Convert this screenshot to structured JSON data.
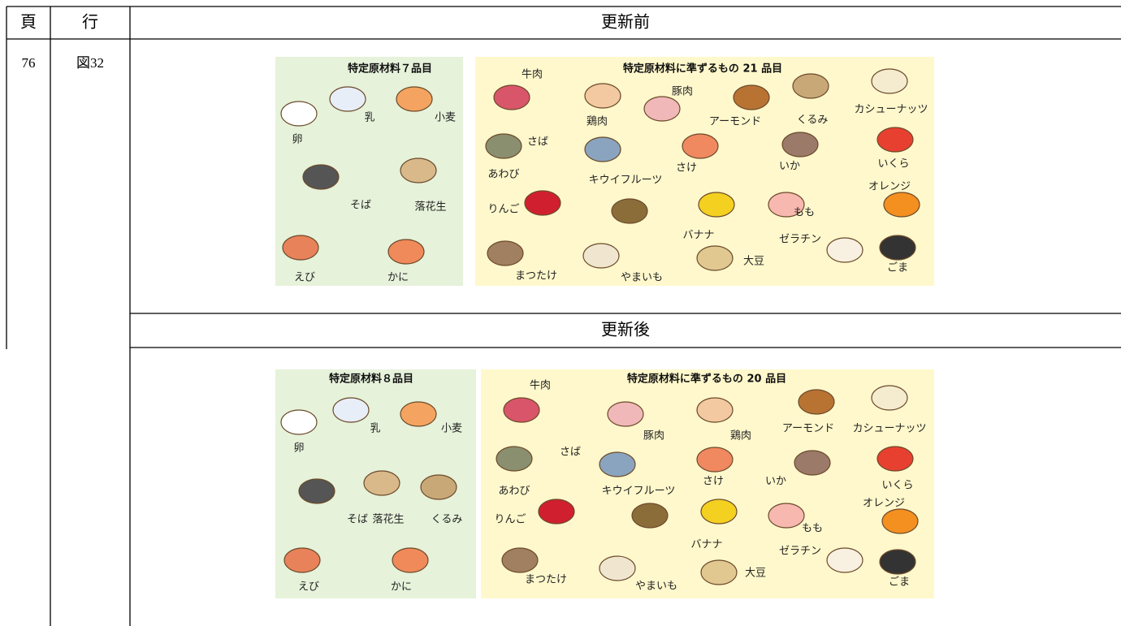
{
  "header": {
    "page": "頁",
    "line": "行",
    "before": "更新前",
    "after": "更新後"
  },
  "row": {
    "page": "76",
    "line": "図32"
  },
  "figure_before": {
    "group1": {
      "title": "特定原材料７品目",
      "items": [
        "卵",
        "乳",
        "小麦",
        "そば",
        "落花生",
        "えび",
        "かに"
      ]
    },
    "group2": {
      "title": "特定原材料に準ずるもの 21 品目",
      "items": [
        "牛肉",
        "鶏肉",
        "豚肉",
        "アーモンド",
        "くるみ",
        "カシューナッツ",
        "さば",
        "キウイフルーツ",
        "さけ",
        "いか",
        "いくら",
        "あわび",
        "りんご",
        "オレンジ",
        "もも",
        "バナナ",
        "ゼラチン",
        "まつたけ",
        "やまいも",
        "大豆",
        "ごま"
      ]
    }
  },
  "figure_after": {
    "group1": {
      "title": "特定原材料８品目",
      "items": [
        "卵",
        "乳",
        "小麦",
        "そば",
        "落花生",
        "くるみ",
        "えび",
        "かに"
      ]
    },
    "group2": {
      "title": "特定原材料に準ずるもの 20 品目",
      "items": [
        "牛肉",
        "豚肉",
        "鶏肉",
        "アーモンド",
        "カシューナッツ",
        "さば",
        "あわび",
        "キウイフルーツ",
        "さけ",
        "いか",
        "いくら",
        "りんご",
        "オレンジ",
        "もも",
        "バナナ",
        "ゼラチン",
        "大豆",
        "まつたけ",
        "やまいも",
        "ごま"
      ]
    }
  }
}
